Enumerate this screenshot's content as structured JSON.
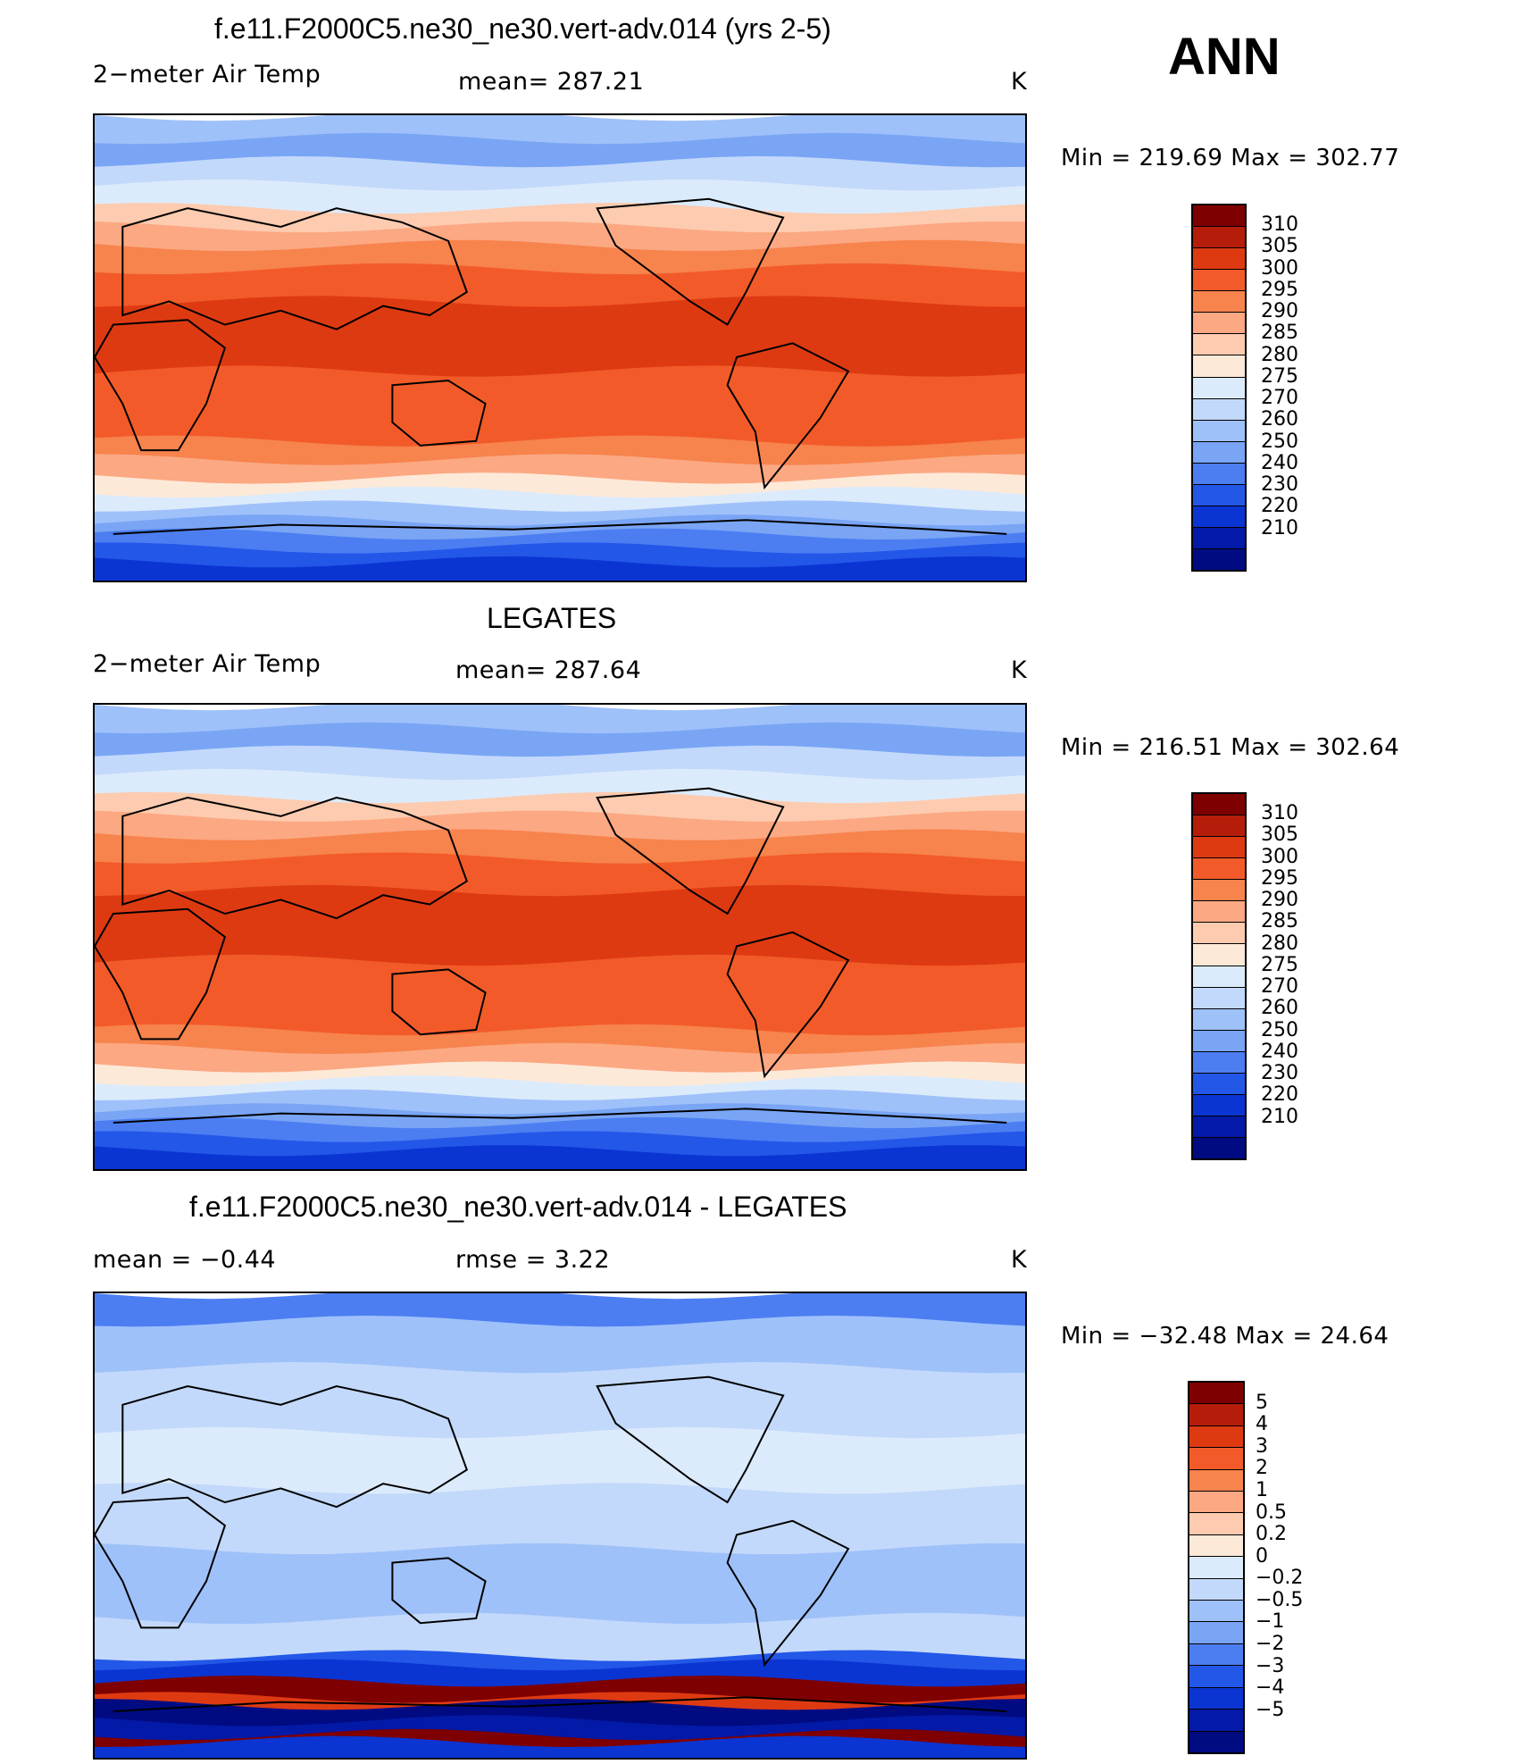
{
  "season": "ANN",
  "panels": [
    {
      "title": "f.e11.F2000C5.ne30_ne30.vert-adv.014 (yrs 2-5)",
      "left": "2−meter Air Temp",
      "center": "mean=  287.21",
      "right": "K",
      "minmax": "Min  =  219.69  Max  =  302.77",
      "map_kind": "temperature",
      "map_label": "2-meter air temperature annual mean, model",
      "colorbar": {
        "colors": [
          "#7f0000",
          "#b51d0a",
          "#de3a12",
          "#f25b29",
          "#f7834d",
          "#fba883",
          "#fdcbb0",
          "#fde9d8",
          "#dcebfb",
          "#c3d9fb",
          "#9fc1fa",
          "#7aa5f5",
          "#4c7ef2",
          "#2257e8",
          "#0b35d2",
          "#0319a7",
          "#000b82"
        ],
        "labels": [
          "310",
          "305",
          "300",
          "295",
          "290",
          "285",
          "280",
          "275",
          "270",
          "260",
          "250",
          "240",
          "230",
          "220",
          "210"
        ]
      }
    },
    {
      "title": "LEGATES",
      "left": "2−meter Air Temp",
      "center": "mean=  287.64",
      "right": "K",
      "minmax": "Min  =  216.51  Max  =  302.64",
      "map_kind": "temperature",
      "map_label": "2-meter air temperature annual mean, LEGATES observations",
      "colorbar": {
        "colors": [
          "#7f0000",
          "#b51d0a",
          "#de3a12",
          "#f25b29",
          "#f7834d",
          "#fba883",
          "#fdcbb0",
          "#fde9d8",
          "#dcebfb",
          "#c3d9fb",
          "#9fc1fa",
          "#7aa5f5",
          "#4c7ef2",
          "#2257e8",
          "#0b35d2",
          "#0319a7",
          "#000b82"
        ],
        "labels": [
          "310",
          "305",
          "300",
          "295",
          "290",
          "285",
          "280",
          "275",
          "270",
          "260",
          "250",
          "240",
          "230",
          "220",
          "210"
        ]
      }
    },
    {
      "title": "f.e11.F2000C5.ne30_ne30.vert-adv.014 - LEGATES",
      "left": "mean  =    −0.44",
      "center": "rmse  =     3.22",
      "right": "K",
      "minmax": "Min  =  −32.48  Max  =    24.64",
      "map_kind": "difference",
      "map_label": "2-meter air temperature difference, model minus LEGATES",
      "colorbar": {
        "colors": [
          "#7f0000",
          "#b51d0a",
          "#de3a12",
          "#f25b29",
          "#f7834d",
          "#fba883",
          "#fdcbb0",
          "#fde9d8",
          "#dcebfb",
          "#c3d9fb",
          "#9fc1fa",
          "#7aa5f5",
          "#4c7ef2",
          "#2257e8",
          "#0b35d2",
          "#0319a7",
          "#000b82"
        ],
        "labels": [
          "5",
          "4",
          "3",
          "2",
          "1",
          "0.5",
          "0.2",
          "0",
          "−0.2",
          "−0.5",
          "−1",
          "−2",
          "−3",
          "−4",
          "−5"
        ]
      }
    }
  ]
}
